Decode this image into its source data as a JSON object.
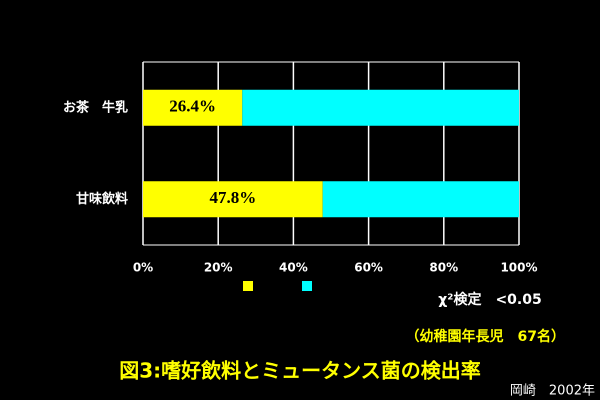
{
  "chart_data": {
    "type": "stacked_barh",
    "categories": [
      "お茶　牛乳",
      "甘味飲料"
    ],
    "series": [
      {
        "color": "#ffff00",
        "values": [
          26.4,
          47.8
        ],
        "value_labels": [
          "26.4%",
          "47.8%"
        ]
      },
      {
        "color": "#00ffff",
        "values": [
          73.6,
          52.2
        ]
      }
    ],
    "xlim": [
      0,
      100
    ],
    "xticks": [
      {
        "value": 0,
        "label": "0%"
      },
      {
        "value": 20,
        "label": "20%"
      },
      {
        "value": 40,
        "label": "40%"
      },
      {
        "value": 60,
        "label": "60%"
      },
      {
        "value": 80,
        "label": "80%"
      },
      {
        "value": 100,
        "label": "100%"
      }
    ],
    "grid": true,
    "annotations": [
      "χ²検定　<0.05",
      "（幼稚園年長児　67名）",
      "岡崎　2002年"
    ],
    "title": "図3:嗜好飲料とミュータンス菌の検出率"
  }
}
